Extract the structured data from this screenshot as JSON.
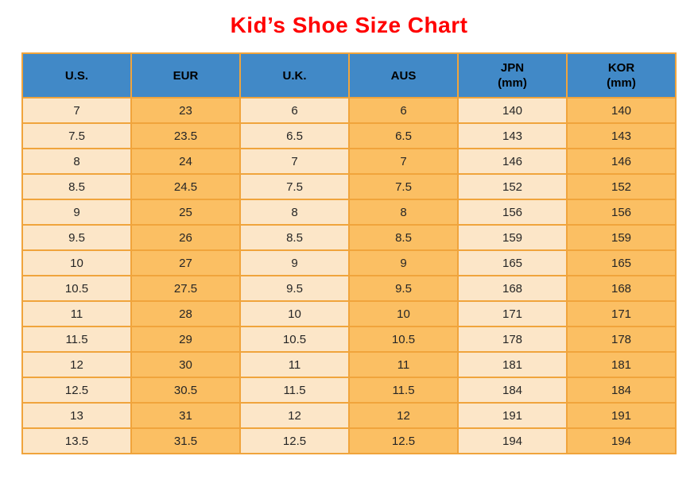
{
  "title": "Kid’s Shoe Size Chart",
  "colors": {
    "title": "#ff0000",
    "header_bg": "#4189c7",
    "light_cell_bg": "#fce6c8",
    "dark_cell_bg": "#fbbf63",
    "grid_line": "#f0a43c",
    "outer_border": "#e09a36",
    "cell_text": "#262626"
  },
  "chart_data": {
    "type": "table",
    "title": "Kid’s Shoe Size Chart",
    "columns": [
      {
        "id": "us",
        "label": "U.S.",
        "sub": "",
        "shade": "light"
      },
      {
        "id": "eur",
        "label": "EUR",
        "sub": "",
        "shade": "dark"
      },
      {
        "id": "uk",
        "label": "U.K.",
        "sub": "",
        "shade": "light"
      },
      {
        "id": "aus",
        "label": "AUS",
        "sub": "",
        "shade": "dark"
      },
      {
        "id": "jpn",
        "label": "JPN",
        "sub": "(mm)",
        "shade": "light"
      },
      {
        "id": "kor",
        "label": "KOR",
        "sub": "(mm)",
        "shade": "dark"
      }
    ],
    "rows": [
      [
        "7",
        "23",
        "6",
        "6",
        "140",
        "140"
      ],
      [
        "7.5",
        "23.5",
        "6.5",
        "6.5",
        "143",
        "143"
      ],
      [
        "8",
        "24",
        "7",
        "7",
        "146",
        "146"
      ],
      [
        "8.5",
        "24.5",
        "7.5",
        "7.5",
        "152",
        "152"
      ],
      [
        "9",
        "25",
        "8",
        "8",
        "156",
        "156"
      ],
      [
        "9.5",
        "26",
        "8.5",
        "8.5",
        "159",
        "159"
      ],
      [
        "10",
        "27",
        "9",
        "9",
        "165",
        "165"
      ],
      [
        "10.5",
        "27.5",
        "9.5",
        "9.5",
        "168",
        "168"
      ],
      [
        "11",
        "28",
        "10",
        "10",
        "171",
        "171"
      ],
      [
        "11.5",
        "29",
        "10.5",
        "10.5",
        "178",
        "178"
      ],
      [
        "12",
        "30",
        "11",
        "11",
        "181",
        "181"
      ],
      [
        "12.5",
        "30.5",
        "11.5",
        "11.5",
        "184",
        "184"
      ],
      [
        "13",
        "31",
        "12",
        "12",
        "191",
        "191"
      ],
      [
        "13.5",
        "31.5",
        "12.5",
        "12.5",
        "194",
        "194"
      ]
    ]
  }
}
